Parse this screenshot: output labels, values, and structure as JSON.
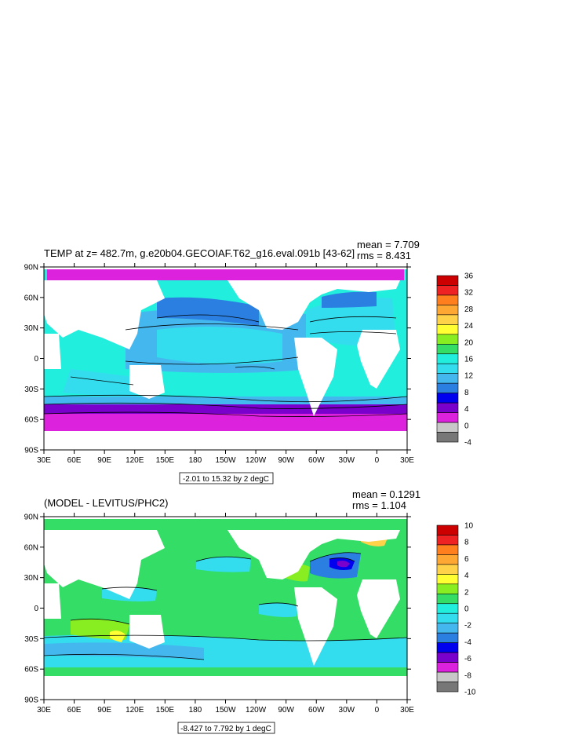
{
  "panels": [
    {
      "title": "TEMP at z= 482.7m, g.e20b04.GECOIAF.T62_g16.eval.091b [43-62]",
      "mean": "mean = 7.709",
      "rms": "rms = 8.431",
      "contour_info": "-2.01 to 15.32 by 2 degC",
      "colorbar": {
        "labels": [
          "36",
          "32",
          "28",
          "24",
          "20",
          "16",
          "12",
          "8",
          "4",
          "0",
          "-4"
        ],
        "colors": [
          "#cc0000",
          "#ee2222",
          "#ff7f1e",
          "#ffa733",
          "#ffd24a",
          "#ffff33",
          "#88ee22",
          "#33dd66",
          "#22eedd",
          "#33ddee",
          "#44b8ee",
          "#2a7fe0",
          "#0000ee",
          "#7a00cc",
          "#dd22dd",
          "#c8c8c8",
          "#777777"
        ]
      }
    },
    {
      "title": "(MODEL - LEVITUS/PHC2)",
      "mean": "mean = 0.1291",
      "rms": "rms = 1.104",
      "contour_info": "-8.427 to 7.792 by 1 degC",
      "colorbar": {
        "labels": [
          "10",
          "8",
          "6",
          "4",
          "2",
          "0",
          "-2",
          "-4",
          "-6",
          "-8",
          "-10"
        ],
        "colors": [
          "#cc0000",
          "#ee2222",
          "#ff7f1e",
          "#ffa733",
          "#ffd24a",
          "#ffff33",
          "#88ee22",
          "#33dd66",
          "#22eedd",
          "#33ddee",
          "#44b8ee",
          "#2a7fe0",
          "#0000ee",
          "#7a00cc",
          "#dd22dd",
          "#c8c8c8",
          "#777777"
        ]
      }
    }
  ],
  "axes": {
    "lat_labels": [
      "90N",
      "60N",
      "30N",
      "0",
      "30S",
      "60S",
      "90S"
    ],
    "lon_labels": [
      "30E",
      "60E",
      "90E",
      "120E",
      "150E",
      "180",
      "150W",
      "120W",
      "90W",
      "60W",
      "30W",
      "0",
      "30E"
    ]
  }
}
